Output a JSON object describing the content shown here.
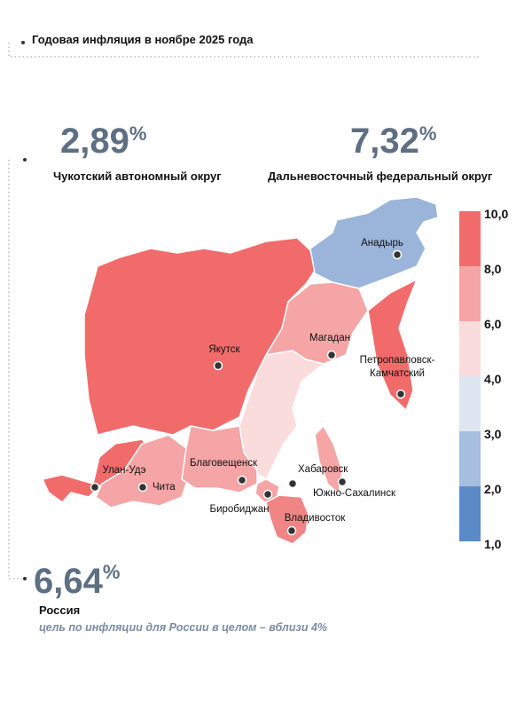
{
  "header": {
    "title": "Годовая инфляция в ноябре 2025 года"
  },
  "stats": [
    {
      "value_label": "2,89",
      "unit": "%",
      "caption": "Чукотский автономный округ"
    },
    {
      "value_label": "7,32",
      "unit": "%",
      "caption": "Дальневосточный федеральный округ"
    },
    {
      "value_label": "6,64",
      "unit": "%",
      "caption": "Россия",
      "note": "цель по инфляции для России в целом – вблизи 4%"
    }
  ],
  "legend": {
    "ticks": [
      {
        "value": 10,
        "label": "10,0"
      },
      {
        "value": 8,
        "label": "8,0"
      },
      {
        "value": 6,
        "label": "6,0"
      },
      {
        "value": 4,
        "label": "4,0"
      },
      {
        "value": 3,
        "label": "3,0"
      },
      {
        "value": 2,
        "label": "2,0"
      },
      {
        "value": 1,
        "label": "1,0"
      }
    ],
    "colors": [
      "#f26b6b",
      "#f5a5a5",
      "#fbdcdc",
      "#dfe6f2",
      "#a6bedf",
      "#5b8bc7"
    ]
  },
  "map": {
    "cities": [
      {
        "label": [
          "Анадырь"
        ],
        "region_color": "#9ab4da"
      },
      {
        "label": [
          "Якутск"
        ],
        "region_color": "#f26b6b"
      },
      {
        "label": [
          "Магадан"
        ],
        "region_color": "#f5a5a5"
      },
      {
        "label": [
          "Петропавловск-",
          "Камчатский"
        ],
        "region_color": "#f26b6b"
      },
      {
        "label": [
          "Улан-Удэ"
        ],
        "region_color": "#f26b6b"
      },
      {
        "label": [
          "Чита"
        ],
        "region_color": "#f5a5a5"
      },
      {
        "label": [
          "Благовещенск"
        ],
        "region_color": "#f5a5a5"
      },
      {
        "label": [
          "Хабаровск"
        ],
        "region_color": "#fbdcdc"
      },
      {
        "label": [
          "Биробиджан"
        ],
        "region_color": "#f5a5a5"
      },
      {
        "label": [
          "Владивосток"
        ],
        "region_color": "#f08585"
      },
      {
        "label": [
          "Южно-Сахалинск"
        ],
        "region_color": "#f5a5a5"
      }
    ]
  }
}
